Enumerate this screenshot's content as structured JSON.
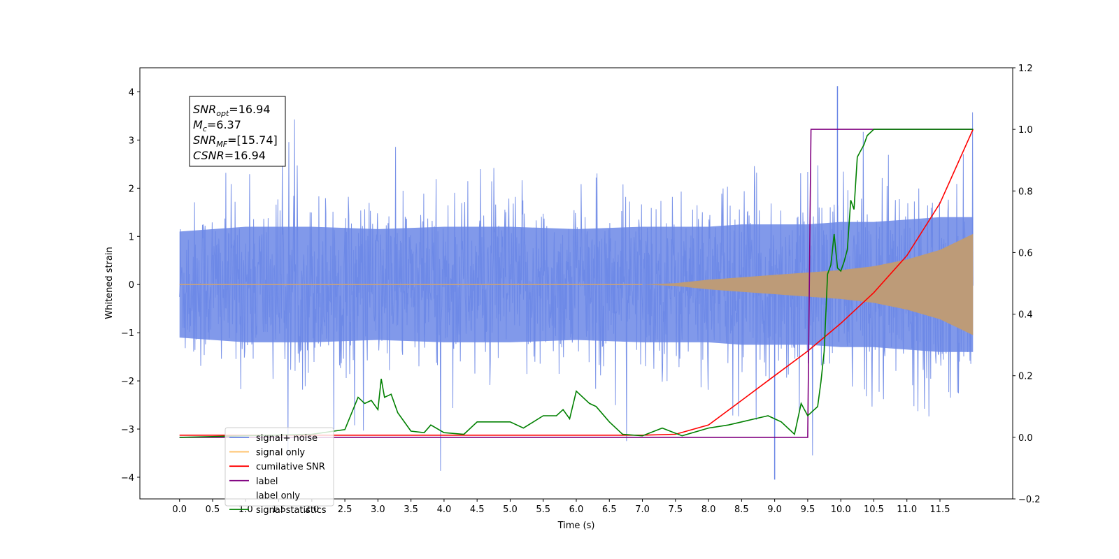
{
  "chart_data": {
    "type": "line",
    "title": "",
    "xlabel": "Time (s)",
    "ylabel": "Whitened strain",
    "xlim": [
      -0.6,
      12.6
    ],
    "ylim": [
      -4.45,
      4.5
    ],
    "y2lim": [
      -0.2,
      1.2
    ],
    "x_ticks": [
      0.0,
      0.5,
      1.0,
      1.5,
      2.0,
      2.5,
      3.0,
      3.5,
      4.0,
      4.5,
      5.0,
      5.5,
      6.0,
      6.5,
      7.0,
      7.5,
      8.0,
      8.5,
      9.0,
      9.5,
      10.0,
      10.5,
      11.0,
      11.5
    ],
    "x_tick_labels": [
      "0.0",
      "0.5",
      "1.0",
      "1.5",
      "2.0",
      "2.5",
      "3.0",
      "3.5",
      "4.0",
      "4.5",
      "5.0",
      "5.5",
      "6.0",
      "6.5",
      "7.0",
      "7.5",
      "8.0",
      "8.5",
      "9.0",
      "9.5",
      "10.0",
      "10.5",
      "11.0",
      "11.5"
    ],
    "y_ticks": [
      -4,
      -3,
      -2,
      -1,
      0,
      1,
      2,
      3,
      4
    ],
    "y_tick_labels": [
      "−4",
      "−3",
      "−2",
      "−1",
      "0",
      "1",
      "2",
      "3",
      "4"
    ],
    "y2_ticks": [
      -0.2,
      0.0,
      0.2,
      0.4,
      0.6,
      0.8,
      1.0,
      1.2
    ],
    "y2_tick_labels": [
      "−0.2",
      "0.0",
      "0.2",
      "0.4",
      "0.6",
      "0.8",
      "1.0",
      "1.2"
    ],
    "legend_position": "lower-left",
    "grid": false,
    "series": [
      {
        "name": "signal+ noise",
        "axis": "left",
        "color": "#6b87e6",
        "envelope_x": [
          0.0,
          1.0,
          2.0,
          3.0,
          4.0,
          5.0,
          6.0,
          7.0,
          7.5,
          8.0,
          8.5,
          9.0,
          9.5,
          10.0,
          10.5,
          11.0,
          11.5,
          12.0
        ],
        "envelope_upper": [
          1.1,
          1.2,
          1.2,
          1.15,
          1.2,
          1.2,
          1.15,
          1.2,
          1.2,
          1.2,
          1.25,
          1.25,
          1.25,
          1.3,
          1.3,
          1.35,
          1.4,
          1.4
        ],
        "envelope_lower": [
          -1.1,
          -1.2,
          -1.2,
          -1.15,
          -1.2,
          -1.2,
          -1.15,
          -1.2,
          -1.2,
          -1.2,
          -1.25,
          -1.25,
          -1.25,
          -1.3,
          -1.3,
          -1.35,
          -1.4,
          -1.4
        ],
        "peak_max": 4.12,
        "peak_min": -4.05
      },
      {
        "name": "signal only",
        "axis": "left",
        "color": "#ffbf66",
        "envelope_x": [
          0.0,
          7.0,
          7.5,
          8.0,
          8.5,
          9.0,
          9.5,
          10.0,
          10.5,
          11.0,
          11.5,
          12.0
        ],
        "amplitude": [
          0.0,
          0.0,
          0.03,
          0.1,
          0.15,
          0.2,
          0.25,
          0.3,
          0.38,
          0.52,
          0.72,
          1.05
        ]
      },
      {
        "name": "cumilative SNR",
        "axis": "right",
        "color": "#ff0000",
        "x": [
          0.0,
          7.0,
          7.5,
          8.0,
          8.5,
          9.0,
          9.5,
          10.0,
          10.5,
          11.0,
          11.5,
          12.0
        ],
        "values": [
          0.007,
          0.007,
          0.01,
          0.04,
          0.12,
          0.2,
          0.28,
          0.37,
          0.47,
          0.59,
          0.76,
          1.0
        ]
      },
      {
        "name": "label",
        "axis": "right",
        "color": "#800080",
        "x": [
          0.0,
          9.5,
          9.55,
          12.0
        ],
        "values": [
          0.0,
          0.0,
          1.0,
          1.0
        ]
      },
      {
        "name": "label only",
        "axis": "right",
        "color": "#ffffff",
        "x": [],
        "values": []
      },
      {
        "name": "signal statistics",
        "axis": "right",
        "color": "#008000",
        "x": [
          0.0,
          2.0,
          2.5,
          2.7,
          2.8,
          2.9,
          3.0,
          3.05,
          3.1,
          3.2,
          3.3,
          3.5,
          3.7,
          3.8,
          4.0,
          4.3,
          4.5,
          4.7,
          5.0,
          5.2,
          5.5,
          5.7,
          5.8,
          5.9,
          6.0,
          6.2,
          6.3,
          6.5,
          6.7,
          7.0,
          7.3,
          7.6,
          8.0,
          8.3,
          8.5,
          8.7,
          8.9,
          9.0,
          9.1,
          9.3,
          9.4,
          9.5,
          9.55,
          9.65,
          9.7,
          9.75,
          9.8,
          9.85,
          9.9,
          9.95,
          10.0,
          10.05,
          10.1,
          10.15,
          10.2,
          10.25,
          10.3,
          10.35,
          10.4,
          10.5,
          10.7,
          12.0
        ],
        "values": [
          0.0,
          0.01,
          0.025,
          0.13,
          0.11,
          0.12,
          0.09,
          0.19,
          0.13,
          0.14,
          0.08,
          0.02,
          0.015,
          0.04,
          0.015,
          0.01,
          0.05,
          0.05,
          0.05,
          0.03,
          0.07,
          0.07,
          0.09,
          0.06,
          0.15,
          0.11,
          0.1,
          0.05,
          0.01,
          0.005,
          0.03,
          0.005,
          0.03,
          0.04,
          0.05,
          0.06,
          0.07,
          0.06,
          0.05,
          0.01,
          0.11,
          0.07,
          0.08,
          0.1,
          0.18,
          0.28,
          0.53,
          0.56,
          0.66,
          0.55,
          0.54,
          0.57,
          0.61,
          0.77,
          0.74,
          0.91,
          0.93,
          0.95,
          0.98,
          1.0,
          1.0,
          1.0
        ]
      }
    ],
    "annotation": {
      "lines": [
        {
          "base": "SNR",
          "sub": "opt",
          "value": "=16.94"
        },
        {
          "base": "M",
          "sub": "c",
          "value": "=6.37"
        },
        {
          "base": "SNR",
          "sub": "MF",
          "value": "=[15.74]"
        },
        {
          "base": "CSNR",
          "sub": "",
          "value": "=16.94"
        }
      ]
    }
  }
}
